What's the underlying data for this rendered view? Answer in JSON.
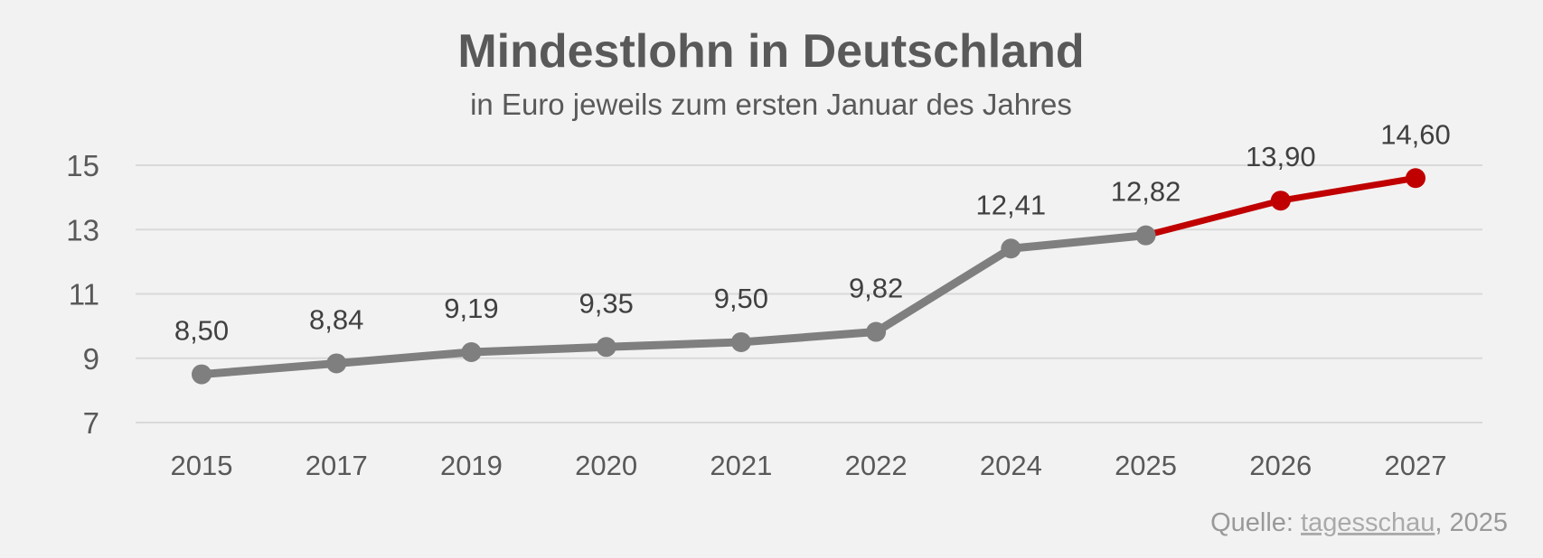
{
  "chart_data": {
    "type": "line",
    "title": "Mindestlohn in Deutschland",
    "subtitle": "in Euro jeweils zum ersten Januar des Jahres",
    "categories": [
      "2015",
      "2017",
      "2019",
      "2020",
      "2021",
      "2022",
      "2024",
      "2025",
      "2026",
      "2027"
    ],
    "values": [
      8.5,
      8.84,
      9.19,
      9.35,
      9.5,
      9.82,
      12.41,
      12.82,
      13.9,
      14.6
    ],
    "value_labels": [
      "8,50",
      "8,84",
      "9,19",
      "9,35",
      "9,50",
      "9,82",
      "12,41",
      "12,82",
      "13,90",
      "14,60"
    ],
    "yticks": [
      "7",
      "9",
      "11",
      "13",
      "15"
    ],
    "ylim": [
      7,
      15
    ],
    "grid": true,
    "highlight_from_index": 7,
    "colors": {
      "base": "#7f7f7f",
      "highlight": "#c00000"
    }
  },
  "source": {
    "prefix": "Quelle: ",
    "link_text": "tagesschau",
    "suffix": ", 2025"
  }
}
